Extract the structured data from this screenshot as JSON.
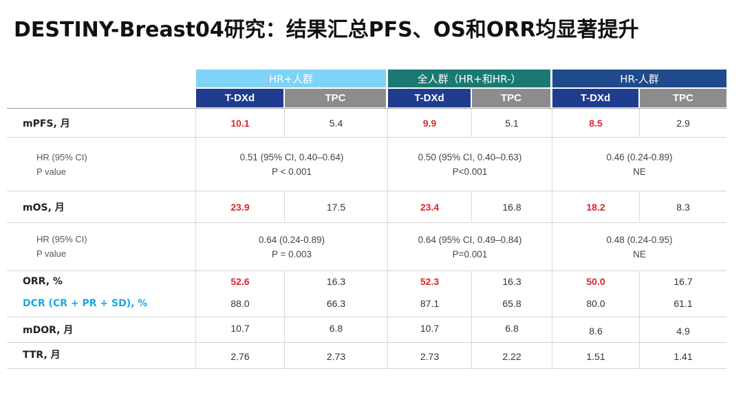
{
  "title": "DESTINY-Breast04研究：结果汇总PFS、OS和ORR均显著提升",
  "colors": {
    "group_hr_pos": "#7fd3f7",
    "group_all": "#1a7a73",
    "group_hr_neg": "#1f4a8c",
    "tdxd_header": "#1f3c8f",
    "tpc_header": "#8c8c8c",
    "highlight_red": "#e0222a",
    "dcr_label": "#1ca9e0"
  },
  "groups": [
    {
      "label": "HR+人群"
    },
    {
      "label": "全人群（HR+和HR-）"
    },
    {
      "label": "HR-人群"
    }
  ],
  "subheaders": [
    "T-DXd",
    "TPC",
    "T-DXd",
    "TPC",
    "T-DXd",
    "TPC"
  ],
  "rows": {
    "mpfs": {
      "label": "mPFS, 月",
      "values": [
        "10.1",
        "5.4",
        "9.9",
        "5.1",
        "8.5",
        "2.9"
      ]
    },
    "pfs_hr": {
      "label1": "HR (95% CI)",
      "label2": "P value",
      "values": [
        {
          "hr": "0.51 (95% CI, 0.40–0.64)",
          "p": "P < 0.001"
        },
        {
          "hr": "0.50 (95% CI, 0.40–0.63)",
          "p": "P<0.001"
        },
        {
          "hr": "0.46 (0.24-0.89)",
          "p": "NE"
        }
      ]
    },
    "mos": {
      "label": "mOS, 月",
      "values": [
        "23.9",
        "17.5",
        "23.4",
        "16.8",
        "18.2",
        "8.3"
      ]
    },
    "os_hr": {
      "label1": "HR (95% CI)",
      "label2": "P value",
      "values": [
        {
          "hr": "0.64 (0.24-0.89)",
          "p": "P = 0.003"
        },
        {
          "hr": "0.64 (95% CI, 0.49–0.84)",
          "p": "P=0.001"
        },
        {
          "hr": "0.48 (0.24-0.95)",
          "p": "NE"
        }
      ]
    },
    "orr": {
      "label": "ORR, %",
      "values": [
        "52.6",
        "16.3",
        "52.3",
        "16.3",
        "50.0",
        "16.7"
      ]
    },
    "dcr": {
      "label": "DCR (CR + PR + SD), %",
      "values": [
        "88.0",
        "66.3",
        "87.1",
        "65.8",
        "80.0",
        "61.1"
      ]
    },
    "mdor": {
      "label": "mDOR, 月",
      "values": [
        "10.7",
        "6.8",
        "10.7",
        "6.8",
        "8.6",
        "4.9"
      ]
    },
    "ttr": {
      "label": "TTR, 月",
      "values": [
        "2.76",
        "2.73",
        "2.73",
        "2.22",
        "1.51",
        "1.41"
      ]
    }
  }
}
